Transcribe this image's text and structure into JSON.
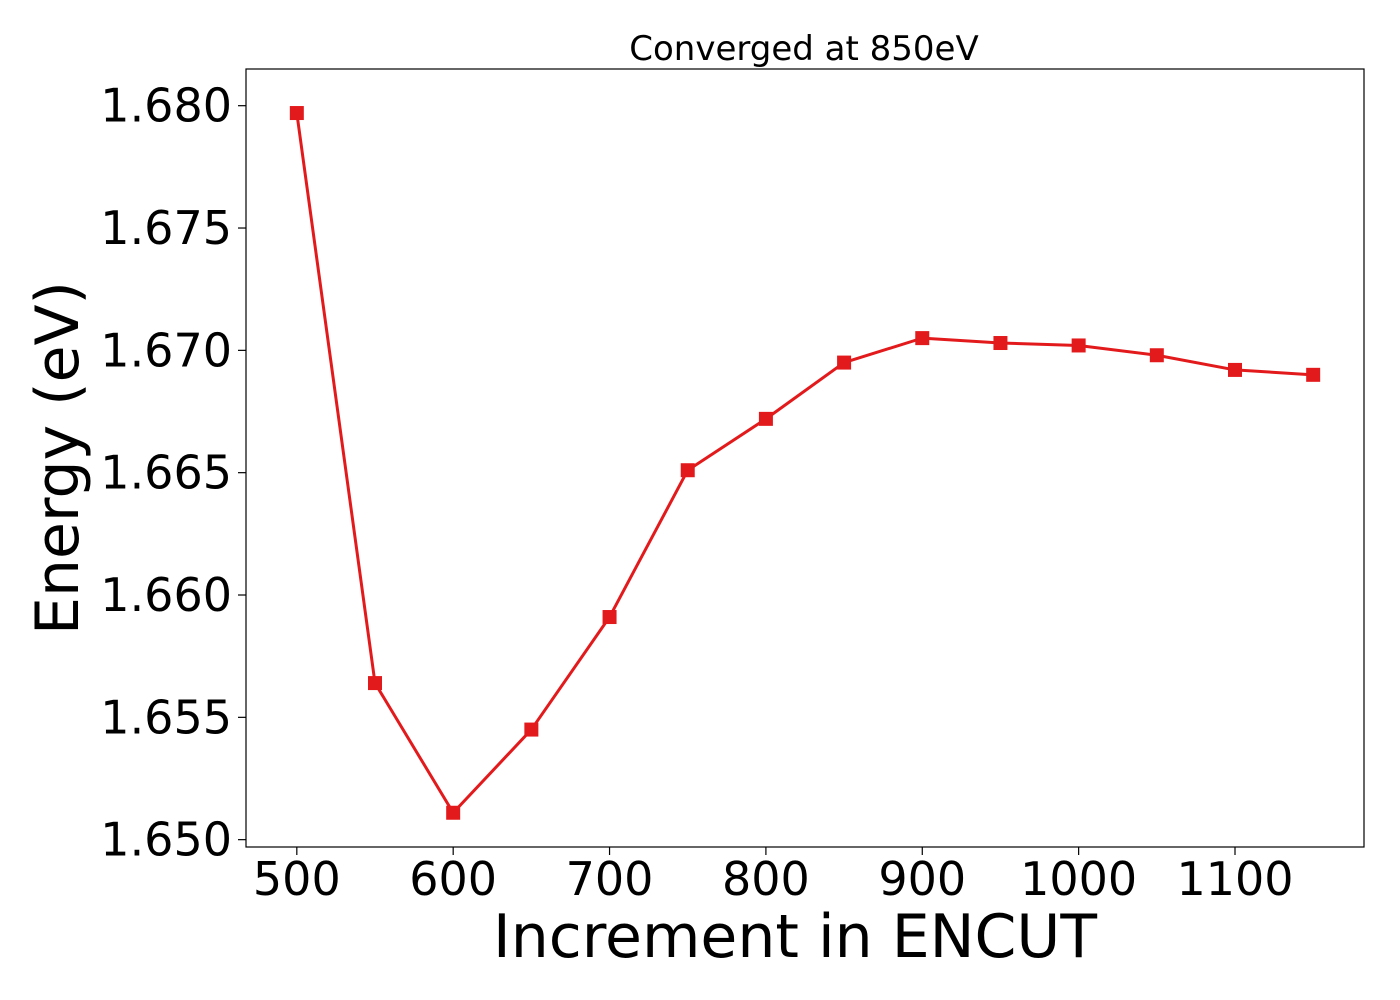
{
  "chart_data": {
    "type": "line",
    "title": "Converged at 850eV",
    "xlabel": "Increment in ENCUT",
    "ylabel": "Energy (eV)",
    "xlim": [
      467.5,
      1182.5
    ],
    "ylim": [
      1.6497,
      1.6815
    ],
    "xticks": [
      500,
      600,
      700,
      800,
      900,
      1000,
      1100
    ],
    "yticks": [
      1.65,
      1.655,
      1.66,
      1.665,
      1.67,
      1.675,
      1.68
    ],
    "ytick_labels": [
      "1.650",
      "1.655",
      "1.660",
      "1.665",
      "1.670",
      "1.675",
      "1.680"
    ],
    "grid": false,
    "series": [
      {
        "marker": "square",
        "color": "#e31a1c",
        "x": [
          500,
          550,
          600,
          650,
          700,
          750,
          800,
          850,
          900,
          950,
          1000,
          1050,
          1100,
          1150
        ],
        "y": [
          1.6797,
          1.6564,
          1.6511,
          1.6545,
          1.6591,
          1.6651,
          1.6672,
          1.6695,
          1.6705,
          1.6703,
          1.6702,
          1.6698,
          1.6692,
          1.669
        ]
      }
    ]
  }
}
